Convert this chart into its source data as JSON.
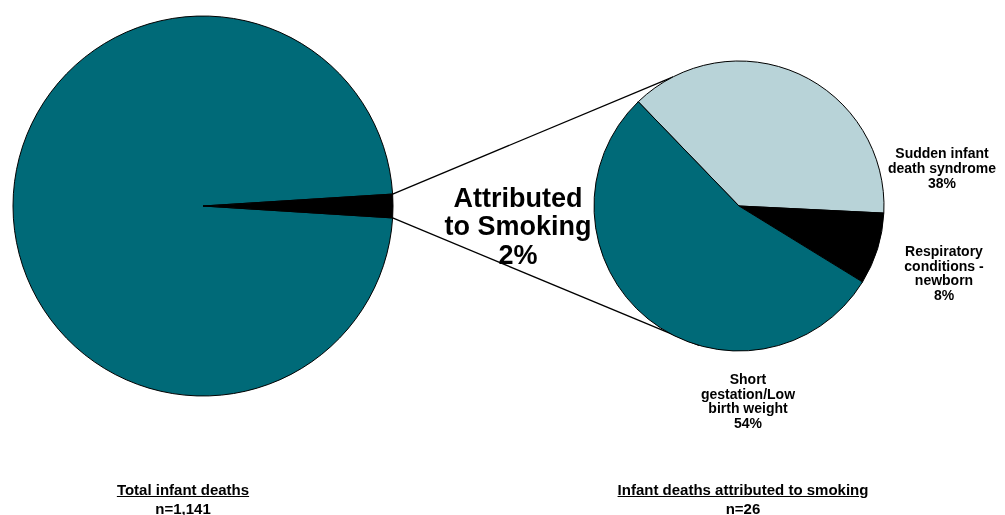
{
  "chart_data": [
    {
      "type": "pie",
      "categories": [
        null,
        "Attributed to Smoking"
      ],
      "values": [
        98,
        2
      ],
      "colors": [
        "#006a78",
        "#000000"
      ],
      "value_labels": [
        null,
        "2%"
      ],
      "annotations": [
        "Total infant deaths",
        "n=1,141"
      ]
    },
    {
      "type": "pie",
      "categories": [
        "Sudden infant death syndrome",
        "Respiratory conditions - newborn",
        "Short gestation/Low birth weight"
      ],
      "values": [
        38,
        8,
        54
      ],
      "colors": [
        "#b8d3d8",
        "#000000",
        "#006a78"
      ],
      "value_labels": [
        "38%",
        "8%",
        "54%"
      ],
      "annotations": [
        "Infant deaths attributed to smoking",
        "n=26"
      ]
    }
  ]
}
